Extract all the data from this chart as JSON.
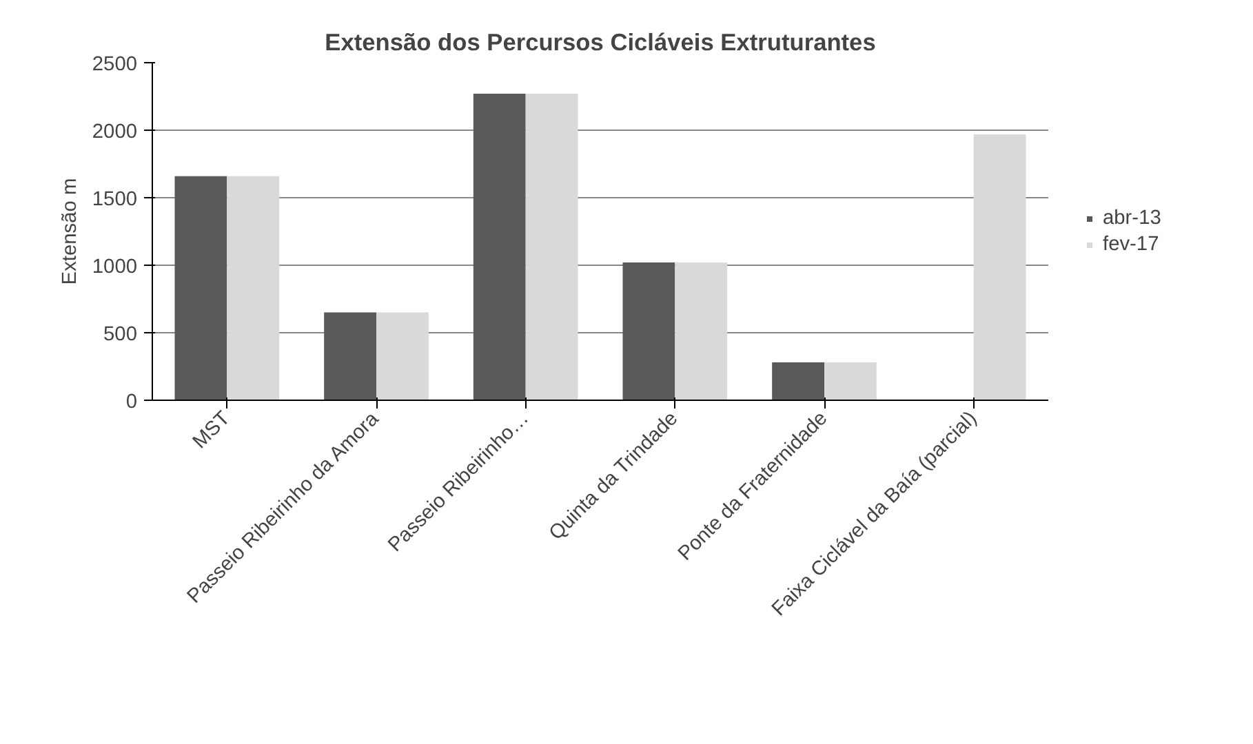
{
  "chart_data": {
    "type": "bar",
    "title": "Extensão dos Percursos Cicláveis Extruturantes",
    "ylabel": "Extensão m",
    "categories": [
      "MST",
      "Passeio Ribeirinho da Amora",
      "Passeio Ribeirinho…",
      "Quinta da Trindade",
      "Ponte da Fraternidade",
      "Faixa Ciclável da Baía (parcial)"
    ],
    "series": [
      {
        "name": "abr-13",
        "color": "#595959",
        "values": [
          1660,
          650,
          2270,
          1020,
          280,
          null
        ]
      },
      {
        "name": "fev-17",
        "color": "#d9d9d9",
        "values": [
          1660,
          650,
          2270,
          1020,
          280,
          1970
        ]
      }
    ],
    "ylim": [
      0,
      2500
    ],
    "yticks": [
      0,
      500,
      1000,
      1500,
      2000,
      2500
    ],
    "grid": "y",
    "legend": "right"
  }
}
